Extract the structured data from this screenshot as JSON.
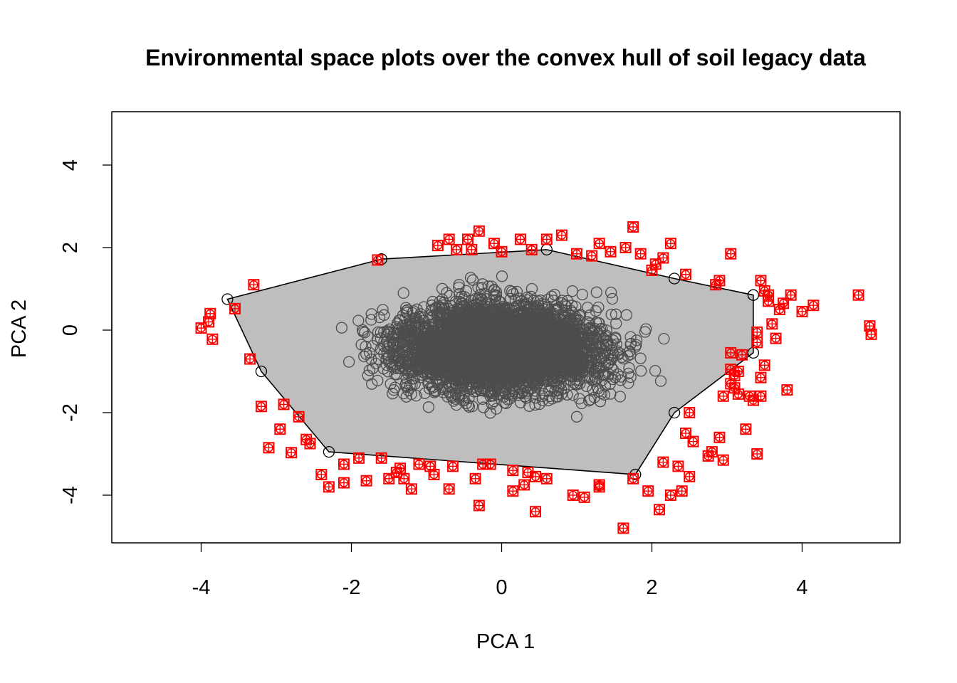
{
  "chart_data": {
    "type": "scatter",
    "title": "Environmental space plots over the convex hull of soil legacy data",
    "xlabel": "PCA 1",
    "ylabel": "PCA 2",
    "xlim": [
      -5.2,
      5.3
    ],
    "ylim": [
      -5.2,
      5.3
    ],
    "xticks": [
      -4,
      -2,
      0,
      2,
      4
    ],
    "yticks": [
      -4,
      -2,
      0,
      2,
      4
    ],
    "xtick_labels": [
      "-4",
      "-2",
      "0",
      "2",
      "4"
    ],
    "ytick_labels": [
      "-4",
      "-2",
      "0",
      "2",
      "4"
    ],
    "grid": false,
    "colors": {
      "hull_fill": "#bebebe",
      "hull_edge": "#000000",
      "legacy_points": "#4d4d4d",
      "outside_points": "#ff0000"
    },
    "hull": {
      "vertices": [
        [
          -3.65,
          0.75
        ],
        [
          -3.2,
          -1.0
        ],
        [
          -2.3,
          -2.95
        ],
        [
          1.78,
          -3.5
        ],
        [
          2.3,
          -2.0
        ],
        [
          3.35,
          -0.55
        ],
        [
          3.35,
          0.85
        ],
        [
          2.3,
          1.25
        ],
        [
          0.6,
          1.95
        ],
        [
          -1.6,
          1.72
        ]
      ]
    },
    "series": [
      {
        "marker": "open-circle",
        "note_count": "dense cloud",
        "points": []
      },
      {
        "marker": "square-circle-plus",
        "points": [
          [
            -4.0,
            0.05
          ],
          [
            -3.9,
            0.2
          ],
          [
            -3.88,
            0.4
          ],
          [
            -3.85,
            -0.22
          ],
          [
            -3.55,
            0.52
          ],
          [
            -3.35,
            -0.7
          ],
          [
            -3.3,
            1.1
          ],
          [
            -3.2,
            -1.85
          ],
          [
            -3.1,
            -2.85
          ],
          [
            -2.95,
            -2.4
          ],
          [
            -2.9,
            -1.8
          ],
          [
            -2.8,
            -2.97
          ],
          [
            -2.7,
            -2.1
          ],
          [
            -2.6,
            -2.65
          ],
          [
            -2.55,
            -2.75
          ],
          [
            -2.4,
            -3.5
          ],
          [
            -2.3,
            -3.8
          ],
          [
            -2.1,
            -3.7
          ],
          [
            -2.1,
            -3.25
          ],
          [
            -1.9,
            -3.1
          ],
          [
            -1.8,
            -3.65
          ],
          [
            -1.65,
            1.7
          ],
          [
            -1.6,
            -3.1
          ],
          [
            -1.5,
            -3.6
          ],
          [
            -1.4,
            -3.45
          ],
          [
            -1.35,
            -3.35
          ],
          [
            -1.3,
            -3.6
          ],
          [
            -1.2,
            -3.85
          ],
          [
            -1.1,
            -3.25
          ],
          [
            -0.95,
            -3.3
          ],
          [
            -0.9,
            -3.5
          ],
          [
            -0.7,
            -3.85
          ],
          [
            -0.65,
            -3.3
          ],
          [
            -0.35,
            -3.6
          ],
          [
            -0.3,
            -4.25
          ],
          [
            -0.25,
            -3.25
          ],
          [
            -0.15,
            -3.25
          ],
          [
            0.15,
            -3.4
          ],
          [
            0.15,
            -3.9
          ],
          [
            0.3,
            -3.75
          ],
          [
            0.35,
            -3.45
          ],
          [
            0.45,
            -3.55
          ],
          [
            0.45,
            -4.4
          ],
          [
            0.6,
            -3.6
          ],
          [
            0.95,
            -4.0
          ],
          [
            1.1,
            -4.05
          ],
          [
            1.3,
            -3.8
          ],
          [
            1.3,
            -3.75
          ],
          [
            1.62,
            -4.8
          ],
          [
            1.75,
            -3.6
          ],
          [
            1.95,
            -3.9
          ],
          [
            2.1,
            -4.35
          ],
          [
            2.15,
            -3.2
          ],
          [
            2.25,
            -4.0
          ],
          [
            2.35,
            -3.3
          ],
          [
            2.4,
            -3.9
          ],
          [
            2.45,
            -2.5
          ],
          [
            2.5,
            -3.55
          ],
          [
            2.5,
            -2.0
          ],
          [
            2.55,
            -2.7
          ],
          [
            2.75,
            -3.05
          ],
          [
            2.8,
            -2.95
          ],
          [
            2.9,
            -2.6
          ],
          [
            2.95,
            -3.15
          ],
          [
            2.95,
            -1.6
          ],
          [
            3.05,
            -0.55
          ],
          [
            3.05,
            -1.3
          ],
          [
            3.05,
            -0.95
          ],
          [
            3.1,
            -1.1
          ],
          [
            3.1,
            -1.4
          ],
          [
            3.15,
            -1.55
          ],
          [
            3.15,
            -1.0
          ],
          [
            3.2,
            -0.6
          ],
          [
            3.25,
            -2.4
          ],
          [
            3.3,
            -1.6
          ],
          [
            3.35,
            -1.7
          ],
          [
            3.4,
            -0.05
          ],
          [
            3.4,
            -0.3
          ],
          [
            3.4,
            -3.0
          ],
          [
            3.45,
            -1.6
          ],
          [
            3.45,
            -1.15
          ],
          [
            3.5,
            -0.85
          ],
          [
            3.45,
            1.2
          ],
          [
            3.5,
            0.95
          ],
          [
            3.55,
            0.7
          ],
          [
            3.55,
            0.85
          ],
          [
            3.6,
            0.15
          ],
          [
            3.65,
            -0.2
          ],
          [
            3.7,
            0.5
          ],
          [
            3.75,
            0.65
          ],
          [
            3.8,
            -1.45
          ],
          [
            3.85,
            0.85
          ],
          [
            4.0,
            0.45
          ],
          [
            4.15,
            0.6
          ],
          [
            4.75,
            0.85
          ],
          [
            4.9,
            0.1
          ],
          [
            4.92,
            -0.1
          ],
          [
            3.05,
            1.85
          ],
          [
            2.9,
            1.2
          ],
          [
            2.85,
            1.1
          ],
          [
            2.45,
            1.35
          ],
          [
            2.25,
            2.1
          ],
          [
            1.75,
            2.5
          ],
          [
            1.65,
            2.0
          ],
          [
            1.45,
            1.9
          ],
          [
            1.3,
            2.1
          ],
          [
            1.2,
            1.8
          ],
          [
            0.8,
            2.3
          ],
          [
            0.6,
            2.2
          ],
          [
            0.25,
            2.2
          ],
          [
            -0.1,
            2.1
          ],
          [
            -0.3,
            2.4
          ],
          [
            -0.45,
            2.2
          ],
          [
            -0.6,
            1.95
          ],
          [
            -0.7,
            2.2
          ],
          [
            -0.85,
            2.05
          ],
          [
            -0.4,
            1.95
          ],
          [
            0.0,
            1.9
          ],
          [
            0.4,
            1.95
          ],
          [
            1.0,
            1.85
          ],
          [
            2.05,
            1.6
          ],
          [
            2.15,
            1.75
          ],
          [
            2.0,
            1.45
          ],
          [
            1.85,
            1.85
          ]
        ]
      }
    ]
  }
}
